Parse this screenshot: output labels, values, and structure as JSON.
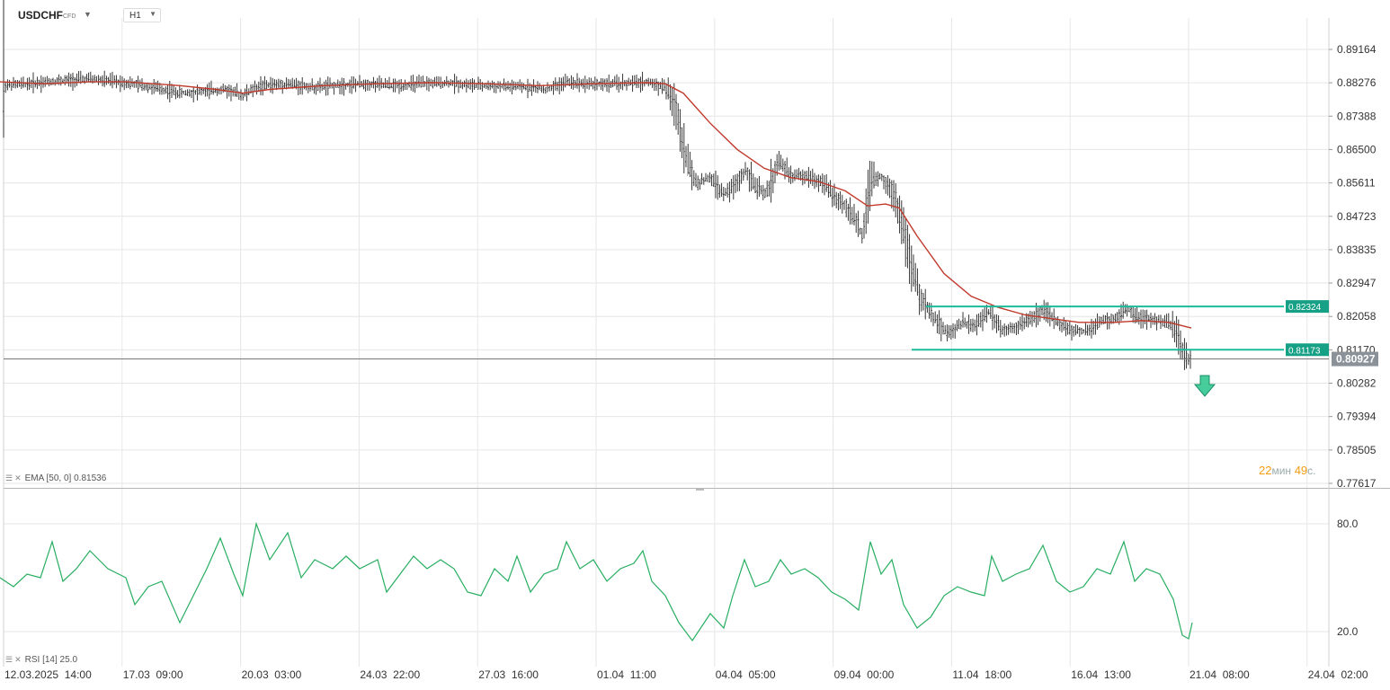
{
  "header": {
    "symbol": "USDCHF",
    "symbol_type": "CFD",
    "timeframe": "H1"
  },
  "colors": {
    "candles": "#222222",
    "ema": "#c0392b",
    "rsi": "#27ae60",
    "levels": "#1abc9c",
    "current_price_bg": "#8a9199",
    "grid": "#e6e6e6",
    "timer": "#f39c12"
  },
  "indicators": {
    "ema_label": "EMA",
    "ema_params": "[50, 0]",
    "ema_value": "0.81536",
    "rsi_label": "RSI",
    "rsi_params": "[14]",
    "rsi_value": "25.0"
  },
  "timer": {
    "minutes": "22",
    "minutes_unit": "мин",
    "seconds": "49",
    "seconds_unit": "с."
  },
  "chart_data": [
    {
      "type": "candlestick",
      "title": "USDCHF H1",
      "y_ticks": [
        "0.89164",
        "0.88276",
        "0.87388",
        "0.86500",
        "0.85611",
        "0.84723",
        "0.83835",
        "0.82947",
        "0.82058",
        "0.81170",
        "0.80282",
        "0.79394",
        "0.78505",
        "0.77617"
      ],
      "ylim": [
        0.77617,
        0.89164
      ],
      "x_ticks": [
        "12.03.2025  14:00",
        "17.03  09:00",
        "20.03  03:00",
        "24.03  22:00",
        "27.03  16:00",
        "01.04  11:00",
        "04.04  05:00",
        "09.04  00:00",
        "11.04  18:00",
        "16.04  13:00",
        "21.04  08:00",
        "24.04  02:00"
      ],
      "price_path": [
        [
          0,
          0.882
        ],
        [
          30,
          0.8825
        ],
        [
          60,
          0.8832
        ],
        [
          100,
          0.8838
        ],
        [
          140,
          0.8828
        ],
        [
          170,
          0.8815
        ],
        [
          200,
          0.88
        ],
        [
          230,
          0.8805
        ],
        [
          250,
          0.881
        ],
        [
          270,
          0.8795
        ],
        [
          290,
          0.882
        ],
        [
          320,
          0.8825
        ],
        [
          350,
          0.8815
        ],
        [
          380,
          0.8822
        ],
        [
          410,
          0.8825
        ],
        [
          440,
          0.882
        ],
        [
          470,
          0.8825
        ],
        [
          500,
          0.8828
        ],
        [
          530,
          0.882
        ],
        [
          560,
          0.8818
        ],
        [
          590,
          0.8815
        ],
        [
          610,
          0.881
        ],
        [
          630,
          0.883
        ],
        [
          660,
          0.8825
        ],
        [
          690,
          0.8825
        ],
        [
          720,
          0.883
        ],
        [
          740,
          0.8815
        ],
        [
          752,
          0.876
        ],
        [
          765,
          0.861
        ],
        [
          775,
          0.856
        ],
        [
          790,
          0.8575
        ],
        [
          805,
          0.853
        ],
        [
          820,
          0.856
        ],
        [
          830,
          0.86
        ],
        [
          840,
          0.855
        ],
        [
          852,
          0.853
        ],
        [
          860,
          0.858
        ],
        [
          866,
          0.862
        ],
        [
          880,
          0.858
        ],
        [
          900,
          0.858
        ],
        [
          915,
          0.856
        ],
        [
          930,
          0.852
        ],
        [
          945,
          0.849
        ],
        [
          960,
          0.842
        ],
        [
          968,
          0.856
        ],
        [
          980,
          0.858
        ],
        [
          995,
          0.853
        ],
        [
          1005,
          0.844
        ],
        [
          1015,
          0.832
        ],
        [
          1025,
          0.825
        ],
        [
          1040,
          0.82
        ],
        [
          1055,
          0.816
        ],
        [
          1070,
          0.819
        ],
        [
          1085,
          0.818
        ],
        [
          1100,
          0.822
        ],
        [
          1115,
          0.817
        ],
        [
          1130,
          0.818
        ],
        [
          1145,
          0.8195
        ],
        [
          1160,
          0.8225
        ],
        [
          1175,
          0.819
        ],
        [
          1190,
          0.817
        ],
        [
          1210,
          0.8165
        ],
        [
          1225,
          0.8195
        ],
        [
          1240,
          0.82
        ],
        [
          1255,
          0.8225
        ],
        [
          1270,
          0.82
        ],
        [
          1290,
          0.8195
        ],
        [
          1305,
          0.818
        ],
        [
          1315,
          0.812
        ],
        [
          1320,
          0.8095
        ],
        [
          1325,
          0.8093
        ]
      ],
      "ema_path": [
        [
          0,
          0.883
        ],
        [
          50,
          0.8825
        ],
        [
          100,
          0.883
        ],
        [
          140,
          0.883
        ],
        [
          200,
          0.882
        ],
        [
          240,
          0.881
        ],
        [
          270,
          0.88
        ],
        [
          300,
          0.881
        ],
        [
          360,
          0.882
        ],
        [
          420,
          0.8825
        ],
        [
          480,
          0.8828
        ],
        [
          540,
          0.8825
        ],
        [
          600,
          0.882
        ],
        [
          660,
          0.8825
        ],
        [
          720,
          0.8828
        ],
        [
          740,
          0.8825
        ],
        [
          760,
          0.88
        ],
        [
          790,
          0.872
        ],
        [
          820,
          0.865
        ],
        [
          850,
          0.86
        ],
        [
          880,
          0.8575
        ],
        [
          910,
          0.8565
        ],
        [
          940,
          0.854
        ],
        [
          965,
          0.85
        ],
        [
          985,
          0.8505
        ],
        [
          1000,
          0.8495
        ],
        [
          1020,
          0.842
        ],
        [
          1050,
          0.832
        ],
        [
          1080,
          0.826
        ],
        [
          1110,
          0.823
        ],
        [
          1140,
          0.821
        ],
        [
          1170,
          0.82
        ],
        [
          1200,
          0.819
        ],
        [
          1240,
          0.819
        ],
        [
          1270,
          0.8195
        ],
        [
          1300,
          0.819
        ],
        [
          1325,
          0.8175
        ]
      ],
      "resistance": {
        "value": 0.82324,
        "label": "0.82324"
      },
      "support": {
        "value": 0.81173,
        "label": "0.81173"
      },
      "current_price": {
        "value": 0.80927,
        "label": "0.80927"
      },
      "signal": "down-arrow"
    },
    {
      "type": "line",
      "title": "RSI [14]",
      "y_ticks": [
        "80.0",
        "20.0"
      ],
      "ylim": [
        8,
        87
      ],
      "series": [
        {
          "name": "RSI [14]",
          "points": [
            [
              0,
              50
            ],
            [
              15,
              45
            ],
            [
              30,
              52
            ],
            [
              45,
              50
            ],
            [
              58,
              70
            ],
            [
              70,
              48
            ],
            [
              85,
              55
            ],
            [
              100,
              65
            ],
            [
              120,
              55
            ],
            [
              140,
              50
            ],
            [
              150,
              35
            ],
            [
              165,
              45
            ],
            [
              180,
              48
            ],
            [
              200,
              25
            ],
            [
              215,
              40
            ],
            [
              230,
              55
            ],
            [
              245,
              72
            ],
            [
              260,
              52
            ],
            [
              270,
              40
            ],
            [
              285,
              80
            ],
            [
              300,
              60
            ],
            [
              320,
              75
            ],
            [
              335,
              50
            ],
            [
              350,
              60
            ],
            [
              370,
              55
            ],
            [
              385,
              62
            ],
            [
              400,
              55
            ],
            [
              420,
              60
            ],
            [
              430,
              42
            ],
            [
              445,
              52
            ],
            [
              460,
              62
            ],
            [
              475,
              55
            ],
            [
              490,
              60
            ],
            [
              505,
              55
            ],
            [
              520,
              42
            ],
            [
              535,
              40
            ],
            [
              550,
              55
            ],
            [
              565,
              48
            ],
            [
              575,
              62
            ],
            [
              590,
              42
            ],
            [
              605,
              52
            ],
            [
              620,
              55
            ],
            [
              630,
              70
            ],
            [
              645,
              55
            ],
            [
              660,
              60
            ],
            [
              675,
              48
            ],
            [
              690,
              55
            ],
            [
              705,
              58
            ],
            [
              715,
              65
            ],
            [
              725,
              48
            ],
            [
              740,
              40
            ],
            [
              755,
              25
            ],
            [
              770,
              15
            ],
            [
              790,
              30
            ],
            [
              805,
              22
            ],
            [
              815,
              40
            ],
            [
              828,
              60
            ],
            [
              840,
              45
            ],
            [
              855,
              48
            ],
            [
              868,
              60
            ],
            [
              880,
              52
            ],
            [
              895,
              55
            ],
            [
              910,
              50
            ],
            [
              925,
              42
            ],
            [
              940,
              38
            ],
            [
              955,
              32
            ],
            [
              968,
              70
            ],
            [
              980,
              52
            ],
            [
              992,
              60
            ],
            [
              1005,
              35
            ],
            [
              1020,
              22
            ],
            [
              1035,
              28
            ],
            [
              1050,
              40
            ],
            [
              1065,
              45
            ],
            [
              1080,
              42
            ],
            [
              1095,
              40
            ],
            [
              1103,
              62
            ],
            [
              1115,
              48
            ],
            [
              1130,
              52
            ],
            [
              1145,
              55
            ],
            [
              1160,
              68
            ],
            [
              1175,
              48
            ],
            [
              1190,
              42
            ],
            [
              1205,
              45
            ],
            [
              1220,
              55
            ],
            [
              1235,
              52
            ],
            [
              1250,
              70
            ],
            [
              1262,
              48
            ],
            [
              1275,
              55
            ],
            [
              1290,
              52
            ],
            [
              1305,
              38
            ],
            [
              1315,
              18
            ],
            [
              1322,
              16
            ],
            [
              1326,
              25
            ]
          ]
        }
      ]
    }
  ]
}
